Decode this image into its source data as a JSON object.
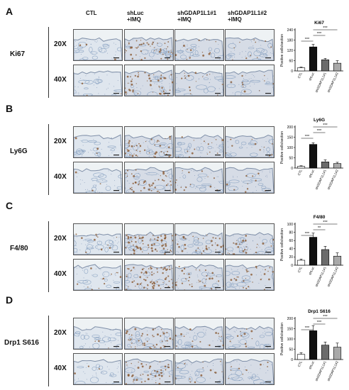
{
  "columns": [
    "CTL",
    "shLuc\n+IMQ",
    "shGDAP1L1#1\n+IMQ",
    "shGDAP1L1#2\n+IMQ"
  ],
  "magnifications": [
    "20X",
    "40X"
  ],
  "colors": {
    "ihc_bg": "#eef2f4",
    "ihc_blue": "#8ea6c4",
    "ihc_brown": "#8a5a33",
    "bar_ctl": "#ffffff",
    "bar_shluc": "#111111",
    "bar_sh1": "#6b6b6b",
    "bar_sh2": "#a9a9a9"
  },
  "panels": [
    {
      "letter": "A",
      "marker": "Ki67",
      "stain": "low",
      "chart_data": {
        "type": "bar",
        "title": "Ki67",
        "ylabel": "Positive cells/section",
        "categories": [
          "CTL",
          "shLuc",
          "shGDAP1L1#1",
          "shGDAP1L1#2"
        ],
        "values": [
          18,
          140,
          65,
          45
        ],
        "errors": [
          4,
          15,
          8,
          15
        ],
        "ylim": [
          0,
          240
        ],
        "yticks": [
          "0",
          "60",
          "120",
          "180",
          "240"
        ],
        "significance": [
          {
            "from": 0,
            "to": 1,
            "label": "***"
          },
          {
            "from": 1,
            "to": 2,
            "label": "***"
          },
          {
            "from": 1,
            "to": 3,
            "label": "***"
          }
        ]
      }
    },
    {
      "letter": "B",
      "marker": "Ly6G",
      "stain": "low",
      "chart_data": {
        "type": "bar",
        "title": "Ly6G",
        "ylabel": "Positive cells/section",
        "categories": [
          "CTL",
          "shLuc",
          "shGDAP1L1#1",
          "shGDAP1L1#2"
        ],
        "values": [
          8,
          115,
          30,
          22
        ],
        "errors": [
          3,
          8,
          10,
          6
        ],
        "ylim": [
          0,
          200
        ],
        "yticks": [
          "0",
          "50",
          "100",
          "150",
          "200"
        ],
        "significance": [
          {
            "from": 0,
            "to": 1,
            "label": "***"
          },
          {
            "from": 1,
            "to": 2,
            "label": "***"
          },
          {
            "from": 1,
            "to": 3,
            "label": "***"
          }
        ]
      }
    },
    {
      "letter": "C",
      "marker": "F4/80",
      "stain": "high",
      "chart_data": {
        "type": "bar",
        "title": "F4/80",
        "ylabel": "Positive cells/section",
        "categories": [
          "CTL",
          "shLuc",
          "shGDAP1L1#1",
          "shGDAP1L1#2"
        ],
        "values": [
          12,
          68,
          38,
          22
        ],
        "errors": [
          3,
          10,
          8,
          8
        ],
        "ylim": [
          0,
          100
        ],
        "yticks": [
          "0",
          "20",
          "40",
          "60",
          "80",
          "100"
        ],
        "significance": [
          {
            "from": 0,
            "to": 1,
            "label": "***"
          },
          {
            "from": 1,
            "to": 2,
            "label": "**"
          },
          {
            "from": 1,
            "to": 3,
            "label": "***"
          }
        ]
      }
    },
    {
      "letter": "D",
      "marker": "Drp1 S616",
      "stain": "mid",
      "chart_data": {
        "type": "bar",
        "title": "Drp1 S616",
        "ylabel": "Positive cells/section",
        "categories": [
          "CTL",
          "shLuc",
          "shGDAP1L1#1",
          "shGDAP1L1#2"
        ],
        "values": [
          25,
          140,
          70,
          60
        ],
        "errors": [
          8,
          25,
          15,
          20
        ],
        "ylim": [
          0,
          200
        ],
        "yticks": [
          "0",
          "50",
          "100",
          "150",
          "200"
        ],
        "significance": [
          {
            "from": 0,
            "to": 1,
            "label": "***"
          },
          {
            "from": 1,
            "to": 2,
            "label": "***"
          },
          {
            "from": 1,
            "to": 3,
            "label": "***"
          }
        ]
      }
    }
  ]
}
